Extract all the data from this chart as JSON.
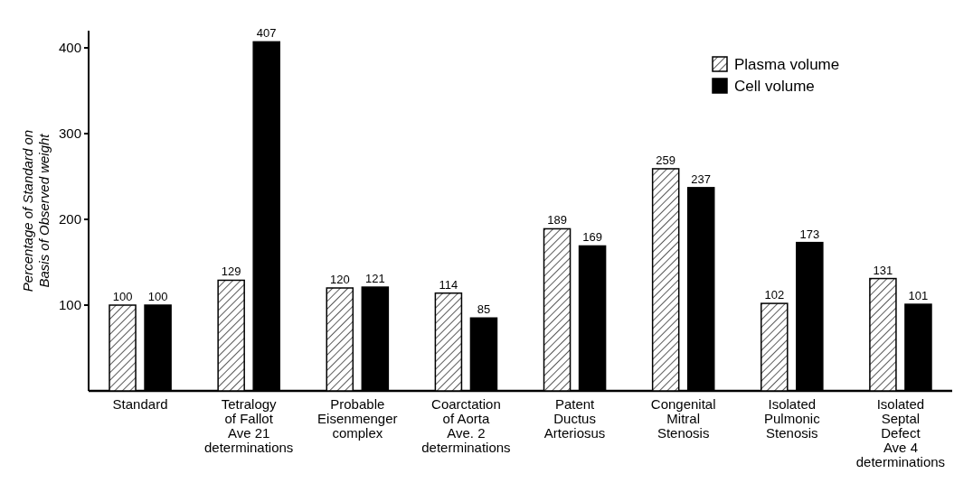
{
  "chart_data": {
    "type": "bar",
    "ylabel": "Percentage of Standard on\nBasis of Observed weight",
    "categories": [
      "Standard",
      "Tetralogy\nof Fallot\nAve 21\ndeterminations",
      "Probable\nEisenmenger\ncomplex",
      "Coarctation\nof Aorta\nAve. 2\ndeterminations",
      "Patent\nDuctus\nArteriosus",
      "Congenital\nMitral\nStenosis",
      "Isolated\nPulmonic\nStenosis",
      "Isolated\nSeptal\nDefect\nAve 4\ndeterminations"
    ],
    "series": [
      {
        "name": "Plasma volume",
        "color": "#ffffff",
        "values": [
          100,
          129,
          120,
          114,
          189,
          259,
          102,
          131
        ]
      },
      {
        "name": "Cell volume",
        "color": "#000000",
        "values": [
          100,
          407,
          121,
          85,
          169,
          237,
          173,
          101
        ]
      }
    ],
    "ylim": [
      0,
      420
    ],
    "yticks": [
      100,
      200,
      300,
      400
    ],
    "data_labels": true,
    "legend": "top right",
    "grid": false
  }
}
